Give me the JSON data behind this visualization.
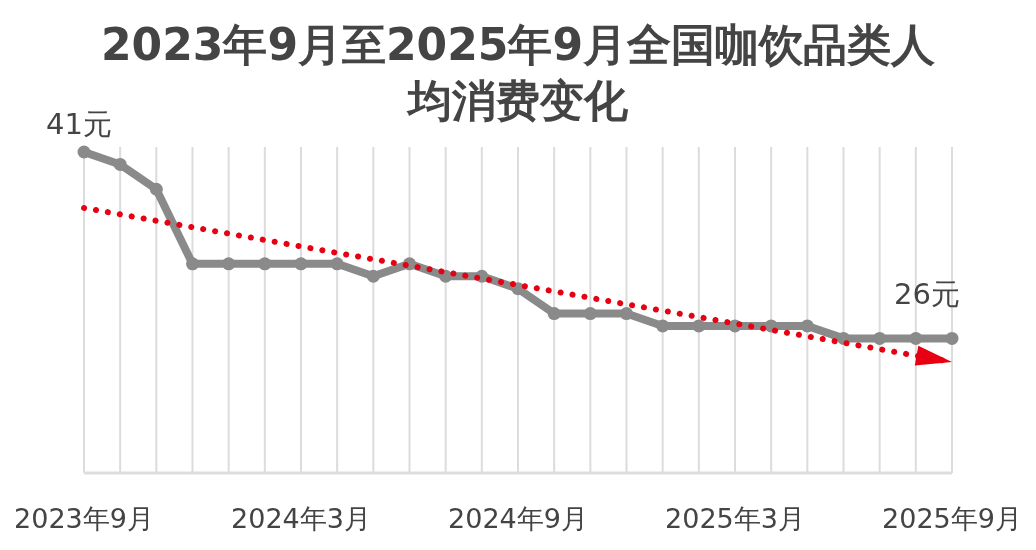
{
  "chart_data": {
    "type": "line",
    "title": "2023年9月至2025年9月全国咖饮品类人均消费变化",
    "x": [
      "2023-09",
      "2023-10",
      "2023-11",
      "2023-12",
      "2024-01",
      "2024-02",
      "2024-03",
      "2024-04",
      "2024-05",
      "2024-06",
      "2024-07",
      "2024-08",
      "2024-09",
      "2024-10",
      "2024-11",
      "2024-12",
      "2025-01",
      "2025-02",
      "2025-03",
      "2025-04",
      "2025-05",
      "2025-06",
      "2025-07",
      "2025-08",
      "2025-09"
    ],
    "xlim": [
      "2023-09",
      "2025-09"
    ],
    "xticks": [
      {
        "value": "2023-09",
        "label": "2023年9月"
      },
      {
        "value": "2023-10",
        "label": null
      },
      {
        "value": "2023-11",
        "label": null
      },
      {
        "value": "2023-12",
        "label": null
      },
      {
        "value": "2024-01",
        "label": null
      },
      {
        "value": "2024-02",
        "label": null
      },
      {
        "value": "2024-03",
        "label": "2024年3月"
      },
      {
        "value": "2024-04",
        "label": null
      },
      {
        "value": "2024-05",
        "label": null
      },
      {
        "value": "2024-06",
        "label": null
      },
      {
        "value": "2024-07",
        "label": null
      },
      {
        "value": "2024-08",
        "label": null
      },
      {
        "value": "2024-09",
        "label": "2024年9月"
      },
      {
        "value": "2024-10",
        "label": null
      },
      {
        "value": "2024-11",
        "label": null
      },
      {
        "value": "2024-12",
        "label": null
      },
      {
        "value": "2025-01",
        "label": null
      },
      {
        "value": "2025-02",
        "label": null
      },
      {
        "value": "2025-03",
        "label": "2025年3月"
      },
      {
        "value": "2025-04",
        "label": null
      },
      {
        "value": "2025-05",
        "label": null
      },
      {
        "value": "2025-06",
        "label": null
      },
      {
        "value": "2025-07",
        "label": null
      },
      {
        "value": "2025-08",
        "label": null
      },
      {
        "value": "2025-09",
        "label": "2025年9月"
      }
    ],
    "tick_labels": "x",
    "grid": "x",
    "marker": "circle",
    "line_style": "solid",
    "series": [
      {
        "color": "#8a8a8a",
        "values": [
          41,
          40,
          38,
          32,
          32,
          32,
          32,
          32,
          31,
          32,
          31,
          31,
          30,
          28,
          28,
          28,
          27,
          27,
          27,
          27,
          27,
          26,
          26,
          26,
          26
        ],
        "value_labels": [
          "41元",
          null,
          null,
          null,
          null,
          null,
          null,
          null,
          null,
          null,
          null,
          null,
          null,
          null,
          null,
          null,
          null,
          null,
          null,
          null,
          null,
          null,
          null,
          null,
          "26元"
        ]
      },
      {
        "type": "line",
        "color": "#e60012",
        "x": [
          "2023-09",
          "2025-09"
        ],
        "values": [
          36.5,
          24.1
        ],
        "marker": "none",
        "line_style": "dotted"
      }
    ]
  }
}
